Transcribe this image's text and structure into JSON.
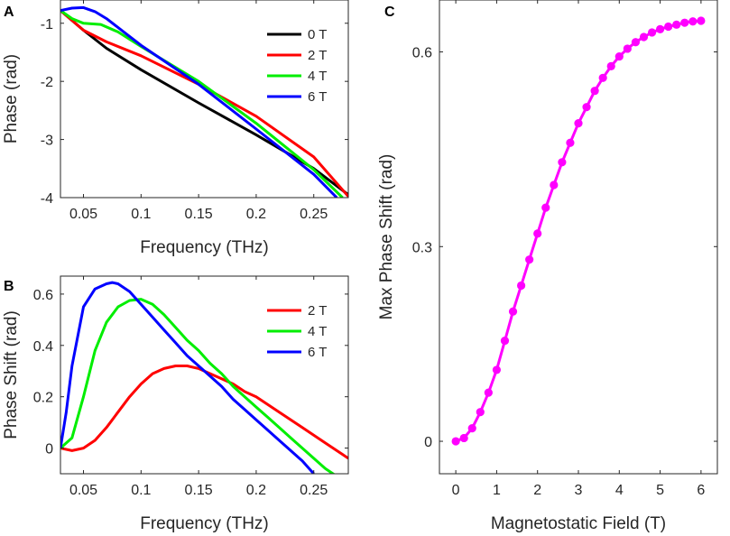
{
  "chart_data": [
    {
      "panel": "A",
      "type": "line",
      "xlabel": "Frequency (THz)",
      "ylabel": "Phase (rad)",
      "xlim": [
        0.03,
        0.28
      ],
      "ylim": [
        -4,
        -0.6
      ],
      "xticks": [
        0.05,
        0.1,
        0.15,
        0.2,
        0.25
      ],
      "xtick_labels": [
        "0.05",
        "0.1",
        "0.15",
        "0.2",
        "0.25"
      ],
      "yticks": [
        -4,
        -3,
        -2,
        -1
      ],
      "ytick_labels": [
        "-4",
        "-3",
        "-2",
        "-1"
      ],
      "legend": "top-right",
      "series": [
        {
          "name": "0 T",
          "color": "#000000",
          "x": [
            0.03,
            0.05,
            0.07,
            0.1,
            0.15,
            0.2,
            0.25,
            0.28
          ],
          "y": [
            -0.78,
            -1.12,
            -1.43,
            -1.8,
            -2.37,
            -2.92,
            -3.5,
            -3.95
          ]
        },
        {
          "name": "2 T",
          "color": "#ff0000",
          "x": [
            0.03,
            0.05,
            0.07,
            0.1,
            0.15,
            0.2,
            0.25,
            0.28
          ],
          "y": [
            -0.78,
            -1.12,
            -1.32,
            -1.56,
            -2.05,
            -2.6,
            -3.3,
            -3.98
          ]
        },
        {
          "name": "4 T",
          "color": "#00ee00",
          "x": [
            0.03,
            0.04,
            0.05,
            0.065,
            0.08,
            0.1,
            0.15,
            0.2,
            0.25,
            0.275
          ],
          "y": [
            -0.78,
            -0.92,
            -1.0,
            -1.02,
            -1.15,
            -1.4,
            -2.0,
            -2.72,
            -3.52,
            -4.0
          ]
        },
        {
          "name": "6 T",
          "color": "#0000ff",
          "x": [
            0.03,
            0.04,
            0.05,
            0.06,
            0.07,
            0.085,
            0.1,
            0.15,
            0.2,
            0.25,
            0.27
          ],
          "y": [
            -0.78,
            -0.74,
            -0.73,
            -0.8,
            -0.92,
            -1.15,
            -1.38,
            -2.05,
            -2.82,
            -3.6,
            -4.0
          ]
        }
      ]
    },
    {
      "panel": "B",
      "type": "line",
      "xlabel": "Frequency (THz)",
      "ylabel": "Phase Shift (rad)",
      "xlim": [
        0.03,
        0.28
      ],
      "ylim": [
        -0.1,
        0.67
      ],
      "xticks": [
        0.05,
        0.1,
        0.15,
        0.2,
        0.25
      ],
      "xtick_labels": [
        "0.05",
        "0.1",
        "0.15",
        "0.2",
        "0.25"
      ],
      "yticks": [
        0,
        0.2,
        0.4,
        0.6
      ],
      "ytick_labels": [
        "0",
        "0.2",
        "0.4",
        "0.6"
      ],
      "legend": "top-right",
      "series": [
        {
          "name": "2 T",
          "color": "#ff0000",
          "x": [
            0.03,
            0.04,
            0.05,
            0.06,
            0.07,
            0.08,
            0.09,
            0.1,
            0.11,
            0.12,
            0.13,
            0.14,
            0.15,
            0.16,
            0.17,
            0.18,
            0.19,
            0.2,
            0.22,
            0.24,
            0.26,
            0.28
          ],
          "y": [
            0.0,
            -0.01,
            0.0,
            0.03,
            0.08,
            0.14,
            0.2,
            0.25,
            0.29,
            0.31,
            0.32,
            0.32,
            0.31,
            0.29,
            0.27,
            0.25,
            0.22,
            0.2,
            0.14,
            0.08,
            0.02,
            -0.04
          ]
        },
        {
          "name": "4 T",
          "color": "#00ee00",
          "x": [
            0.03,
            0.04,
            0.05,
            0.06,
            0.07,
            0.08,
            0.09,
            0.1,
            0.11,
            0.12,
            0.13,
            0.14,
            0.15,
            0.16,
            0.17,
            0.18,
            0.19,
            0.2,
            0.21,
            0.22,
            0.23,
            0.24,
            0.25,
            0.26,
            0.27
          ],
          "y": [
            0.0,
            0.04,
            0.2,
            0.38,
            0.49,
            0.55,
            0.575,
            0.58,
            0.56,
            0.52,
            0.47,
            0.42,
            0.38,
            0.33,
            0.29,
            0.24,
            0.2,
            0.16,
            0.12,
            0.08,
            0.04,
            0.0,
            -0.04,
            -0.08,
            -0.11
          ]
        },
        {
          "name": "6 T",
          "color": "#0000ff",
          "x": [
            0.03,
            0.035,
            0.04,
            0.05,
            0.06,
            0.07,
            0.075,
            0.08,
            0.09,
            0.1,
            0.11,
            0.12,
            0.13,
            0.14,
            0.15,
            0.16,
            0.17,
            0.18,
            0.19,
            0.2,
            0.21,
            0.22,
            0.23,
            0.24,
            0.25
          ],
          "y": [
            0.0,
            0.14,
            0.32,
            0.55,
            0.62,
            0.64,
            0.645,
            0.64,
            0.61,
            0.56,
            0.51,
            0.46,
            0.41,
            0.36,
            0.32,
            0.28,
            0.24,
            0.19,
            0.15,
            0.11,
            0.07,
            0.03,
            -0.01,
            -0.05,
            -0.1
          ]
        }
      ]
    },
    {
      "panel": "C",
      "type": "line",
      "xlabel": "Magnetostatic Field (T)",
      "ylabel": "Max Phase Shift (rad)",
      "xlim": [
        -0.4,
        6.4
      ],
      "ylim": [
        -0.05,
        0.68
      ],
      "xticks": [
        0,
        1,
        2,
        3,
        4,
        5,
        6
      ],
      "xtick_labels": [
        "0",
        "1",
        "2",
        "3",
        "4",
        "5",
        "6"
      ],
      "yticks": [
        0,
        0.3,
        0.6
      ],
      "ytick_labels": [
        "0",
        "0.3",
        "0.6"
      ],
      "series": [
        {
          "name": "Max Phase Shift",
          "color": "#ff00ff",
          "markers": true,
          "x": [
            0,
            0.2,
            0.4,
            0.6,
            0.8,
            1.0,
            1.2,
            1.4,
            1.6,
            1.8,
            2.0,
            2.2,
            2.4,
            2.6,
            2.8,
            3.0,
            3.2,
            3.4,
            3.6,
            3.8,
            4.0,
            4.2,
            4.4,
            4.6,
            4.8,
            5.0,
            5.2,
            5.4,
            5.6,
            5.8,
            6.0
          ],
          "y": [
            0.0,
            0.005,
            0.02,
            0.045,
            0.075,
            0.11,
            0.155,
            0.2,
            0.24,
            0.28,
            0.32,
            0.36,
            0.395,
            0.43,
            0.46,
            0.49,
            0.515,
            0.54,
            0.56,
            0.578,
            0.593,
            0.605,
            0.615,
            0.623,
            0.63,
            0.635,
            0.639,
            0.642,
            0.645,
            0.647,
            0.648
          ]
        }
      ]
    }
  ]
}
